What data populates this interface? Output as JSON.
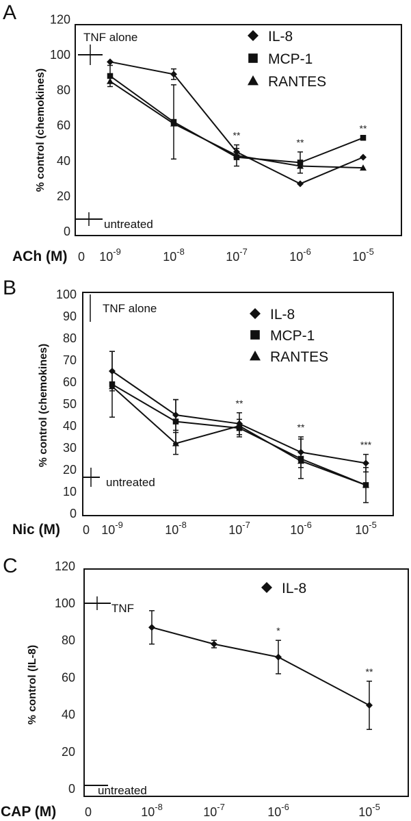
{
  "chart_data": [
    {
      "type": "line",
      "panel": "A",
      "ylabel": "% control (chemokines)",
      "x_unit": "ACh (M)",
      "x_tick_labels": [
        "0",
        "10",
        "10",
        "10",
        "10",
        "10"
      ],
      "x_tick_exponents": [
        "",
        "-9",
        "-8",
        "-7",
        "-6",
        "-5"
      ],
      "y_ticks": [
        0,
        20,
        40,
        60,
        80,
        100,
        120
      ],
      "ylim": [
        0,
        120
      ],
      "x": [
        1e-09,
        1e-08,
        1e-07,
        1e-06,
        1e-05
      ],
      "series": [
        {
          "name": "IL-8",
          "marker": "diamond",
          "values": [
            96,
            89,
            45,
            27,
            42
          ],
          "errors": [
            0,
            3,
            4,
            0,
            0
          ]
        },
        {
          "name": "MCP-1",
          "marker": "square",
          "values": [
            88,
            62,
            42,
            39,
            53
          ],
          "errors": [
            6,
            21,
            5,
            6,
            0
          ]
        },
        {
          "name": "RANTES",
          "marker": "triangle",
          "values": [
            85,
            61,
            43,
            37,
            36
          ],
          "errors": [
            0,
            0,
            0,
            0,
            0
          ]
        }
      ],
      "reference_marks": {
        "tnf_alone": 100,
        "untreated": 10
      },
      "reference_labels": {
        "tnf_alone": "TNF alone",
        "untreated": "untreated"
      },
      "significance": [
        "",
        "",
        "**",
        "**",
        "**"
      ],
      "legend": [
        "IL-8",
        "MCP-1",
        "RANTES"
      ]
    },
    {
      "type": "line",
      "panel": "B",
      "ylabel": "% control (chemokines)",
      "x_unit": "Nic (M)",
      "x_tick_labels": [
        "0",
        "10",
        "10",
        "10",
        "10",
        "10"
      ],
      "x_tick_exponents": [
        "",
        "-9",
        "-8",
        "-7",
        "-6",
        "-5"
      ],
      "y_ticks": [
        0,
        10,
        20,
        30,
        40,
        50,
        60,
        70,
        80,
        90,
        100
      ],
      "ylim": [
        0,
        100
      ],
      "x": [
        1e-09,
        1e-08,
        1e-07,
        1e-06,
        1e-05
      ],
      "series": [
        {
          "name": "IL-8",
          "marker": "diamond",
          "values": [
            65,
            45,
            41,
            28,
            23
          ],
          "errors": [
            9,
            7,
            5,
            7,
            4
          ]
        },
        {
          "name": "MCP-1",
          "marker": "square",
          "values": [
            59,
            42,
            39,
            25,
            13
          ],
          "errors": [
            15,
            10,
            4,
            9,
            8
          ]
        },
        {
          "name": "RANTES",
          "marker": "triangle",
          "values": [
            58,
            32,
            40,
            24,
            13
          ],
          "errors": [
            0,
            5,
            0,
            0,
            0
          ]
        }
      ],
      "reference_marks": {
        "tnf_alone": 100,
        "untreated": 18
      },
      "reference_labels": {
        "tnf_alone": "TNF alone",
        "untreated": "untreated"
      },
      "significance": [
        "",
        "",
        "**",
        "**",
        "***"
      ],
      "legend": [
        "IL-8",
        "MCP-1",
        "RANTES"
      ]
    },
    {
      "type": "line",
      "panel": "C",
      "ylabel": "% control (IL-8)",
      "x_unit": "CAP (M)",
      "x_tick_labels": [
        "0",
        "10",
        "10",
        "10",
        "10"
      ],
      "x_tick_exponents": [
        "",
        "-8",
        "-7",
        "-6",
        "-5"
      ],
      "y_ticks": [
        0,
        20,
        40,
        60,
        80,
        100,
        120
      ],
      "ylim": [
        0,
        120
      ],
      "x": [
        1e-08,
        1e-07,
        1e-06,
        1e-05
      ],
      "series": [
        {
          "name": "IL-8",
          "marker": "diamond",
          "values": [
            87,
            78,
            71,
            45
          ],
          "errors": [
            9,
            2,
            9,
            13
          ]
        }
      ],
      "reference_marks": {
        "tnf_alone": 100,
        "untreated": 5
      },
      "reference_labels": {
        "tnf_alone": "TNF",
        "untreated": "untreated"
      },
      "significance": [
        "",
        "",
        "*",
        "**"
      ],
      "legend": [
        "IL-8"
      ]
    }
  ]
}
